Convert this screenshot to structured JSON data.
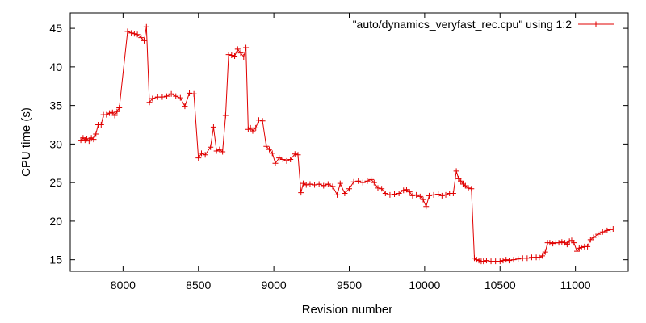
{
  "chart_data": {
    "type": "line",
    "title": "",
    "xlabel": "Revision number",
    "ylabel": "CPU time (s)",
    "xlim": [
      7650,
      11350
    ],
    "ylim": [
      13.5,
      47
    ],
    "xticks": [
      8000,
      8500,
      9000,
      9500,
      10000,
      10500,
      11000
    ],
    "yticks": [
      15,
      20,
      25,
      30,
      35,
      40,
      45
    ],
    "grid": false,
    "legend_position": "top-right",
    "series": [
      {
        "name": "\"auto/dynamics_veryfast_rec.cpu\" using 1:2",
        "color": "#e00000",
        "marker": "plus",
        "points": [
          [
            7720,
            30.5
          ],
          [
            7735,
            30.8
          ],
          [
            7748,
            30.5
          ],
          [
            7760,
            30.7
          ],
          [
            7775,
            30.4
          ],
          [
            7790,
            30.8
          ],
          [
            7805,
            30.6
          ],
          [
            7820,
            31.3
          ],
          [
            7835,
            32.5
          ],
          [
            7855,
            32.5
          ],
          [
            7870,
            33.8
          ],
          [
            7890,
            33.8
          ],
          [
            7910,
            34.0
          ],
          [
            7930,
            34.1
          ],
          [
            7945,
            33.7
          ],
          [
            7960,
            34.2
          ],
          [
            7975,
            34.7
          ],
          [
            8030,
            44.6
          ],
          [
            8055,
            44.4
          ],
          [
            8075,
            44.3
          ],
          [
            8095,
            44.2
          ],
          [
            8120,
            43.8
          ],
          [
            8140,
            43.4
          ],
          [
            8155,
            45.2
          ],
          [
            8175,
            35.4
          ],
          [
            8195,
            35.9
          ],
          [
            8230,
            36.1
          ],
          [
            8260,
            36.1
          ],
          [
            8290,
            36.2
          ],
          [
            8320,
            36.5
          ],
          [
            8350,
            36.2
          ],
          [
            8380,
            36.0
          ],
          [
            8410,
            34.9
          ],
          [
            8440,
            36.6
          ],
          [
            8470,
            36.5
          ],
          [
            8500,
            28.2
          ],
          [
            8520,
            28.8
          ],
          [
            8545,
            28.6
          ],
          [
            8580,
            29.6
          ],
          [
            8600,
            32.2
          ],
          [
            8620,
            29.1
          ],
          [
            8640,
            29.3
          ],
          [
            8660,
            29.0
          ],
          [
            8680,
            33.7
          ],
          [
            8700,
            41.6
          ],
          [
            8720,
            41.5
          ],
          [
            8740,
            41.4
          ],
          [
            8760,
            42.3
          ],
          [
            8780,
            41.8
          ],
          [
            8800,
            41.3
          ],
          [
            8815,
            42.5
          ],
          [
            8830,
            31.9
          ],
          [
            8845,
            32.1
          ],
          [
            8860,
            31.7
          ],
          [
            8880,
            32.1
          ],
          [
            8900,
            33.1
          ],
          [
            8925,
            33.0
          ],
          [
            8950,
            29.7
          ],
          [
            8970,
            29.3
          ],
          [
            8990,
            28.8
          ],
          [
            9010,
            27.5
          ],
          [
            9035,
            28.2
          ],
          [
            9060,
            28.0
          ],
          [
            9085,
            27.8
          ],
          [
            9110,
            28.0
          ],
          [
            9140,
            28.7
          ],
          [
            9160,
            28.6
          ],
          [
            9180,
            23.7
          ],
          [
            9195,
            24.9
          ],
          [
            9215,
            24.7
          ],
          [
            9240,
            24.8
          ],
          [
            9270,
            24.7
          ],
          [
            9300,
            24.8
          ],
          [
            9330,
            24.6
          ],
          [
            9360,
            24.8
          ],
          [
            9390,
            24.5
          ],
          [
            9420,
            23.4
          ],
          [
            9440,
            24.9
          ],
          [
            9470,
            23.6
          ],
          [
            9500,
            24.2
          ],
          [
            9530,
            25.1
          ],
          [
            9560,
            25.2
          ],
          [
            9590,
            25.0
          ],
          [
            9620,
            25.2
          ],
          [
            9645,
            25.4
          ],
          [
            9665,
            25.0
          ],
          [
            9690,
            24.3
          ],
          [
            9715,
            24.2
          ],
          [
            9740,
            23.6
          ],
          [
            9770,
            23.4
          ],
          [
            9800,
            23.5
          ],
          [
            9830,
            23.6
          ],
          [
            9860,
            24.0
          ],
          [
            9880,
            24.1
          ],
          [
            9900,
            23.8
          ],
          [
            9920,
            23.3
          ],
          [
            9945,
            23.4
          ],
          [
            9970,
            23.2
          ],
          [
            9990,
            22.8
          ],
          [
            10010,
            21.9
          ],
          [
            10030,
            23.3
          ],
          [
            10060,
            23.4
          ],
          [
            10090,
            23.5
          ],
          [
            10115,
            23.3
          ],
          [
            10140,
            23.4
          ],
          [
            10165,
            23.6
          ],
          [
            10190,
            23.6
          ],
          [
            10210,
            26.5
          ],
          [
            10225,
            25.5
          ],
          [
            10240,
            25.2
          ],
          [
            10255,
            24.8
          ],
          [
            10270,
            24.6
          ],
          [
            10290,
            24.3
          ],
          [
            10310,
            24.2
          ],
          [
            10330,
            15.2
          ],
          [
            10345,
            15.0
          ],
          [
            10360,
            14.9
          ],
          [
            10375,
            14.8
          ],
          [
            10390,
            14.8
          ],
          [
            10410,
            14.9
          ],
          [
            10440,
            14.8
          ],
          [
            10470,
            14.8
          ],
          [
            10500,
            14.8
          ],
          [
            10520,
            14.9
          ],
          [
            10540,
            15.0
          ],
          [
            10560,
            14.9
          ],
          [
            10590,
            15.0
          ],
          [
            10620,
            15.1
          ],
          [
            10650,
            15.2
          ],
          [
            10680,
            15.2
          ],
          [
            10710,
            15.3
          ],
          [
            10740,
            15.3
          ],
          [
            10760,
            15.3
          ],
          [
            10780,
            15.5
          ],
          [
            10800,
            16.0
          ],
          [
            10815,
            17.2
          ],
          [
            10830,
            17.2
          ],
          [
            10850,
            17.1
          ],
          [
            10870,
            17.2
          ],
          [
            10890,
            17.2
          ],
          [
            10910,
            17.3
          ],
          [
            10930,
            17.2
          ],
          [
            10945,
            17.0
          ],
          [
            10960,
            17.4
          ],
          [
            10975,
            17.5
          ],
          [
            10990,
            17.2
          ],
          [
            11010,
            16.1
          ],
          [
            11025,
            16.5
          ],
          [
            11040,
            16.6
          ],
          [
            11060,
            16.7
          ],
          [
            11080,
            16.7
          ],
          [
            11100,
            17.6
          ],
          [
            11120,
            17.9
          ],
          [
            11150,
            18.3
          ],
          [
            11180,
            18.6
          ],
          [
            11210,
            18.8
          ],
          [
            11230,
            18.9
          ],
          [
            11250,
            19.0
          ]
        ]
      }
    ]
  }
}
